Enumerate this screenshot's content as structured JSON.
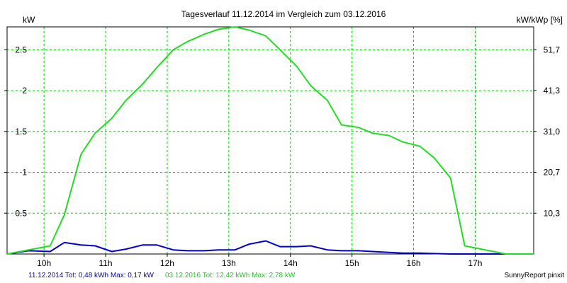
{
  "colors": {
    "background": "#ffffff",
    "plot_background": "#ffffff",
    "grid": "#00cc00",
    "series_2014": "#0000cc",
    "series_2016": "#22dd22",
    "footer_2014": "#0000cc",
    "footer_2016": "#22cc22"
  },
  "footer": {
    "series_2014_text": "11.12.2014 Tot: 0,48 kWh Max: 0,17 kW",
    "series_2016_text": "03.12.2016 Tot: 12,42 kWh Max: 2,78 kW",
    "credit": "SunnyReport pinxit"
  },
  "chart_data": {
    "type": "line",
    "title": "Tagesverlauf 11.12.2014 im Vergleich zum 03.12.2016",
    "ylabel_left": "kW",
    "ylabel_right": "kW/kWp [%]",
    "xlim": [
      9.4,
      17.95
    ],
    "ylim": [
      0,
      2.78
    ],
    "x_ticks": [
      {
        "value": 10,
        "label": "10h"
      },
      {
        "value": 11,
        "label": "11h"
      },
      {
        "value": 12,
        "label": "12h"
      },
      {
        "value": 13,
        "label": "13h"
      },
      {
        "value": 14,
        "label": "14h"
      },
      {
        "value": 15,
        "label": "15h"
      },
      {
        "value": 16,
        "label": "16h"
      },
      {
        "value": 17,
        "label": "17h"
      }
    ],
    "y_ticks_left": [
      {
        "value": 0.5,
        "label": "0.5"
      },
      {
        "value": 1,
        "label": "1"
      },
      {
        "value": 1.5,
        "label": "1.5"
      },
      {
        "value": 2,
        "label": "2"
      },
      {
        "value": 2.5,
        "label": "2.5"
      }
    ],
    "y_ticks_right": [
      {
        "value": 0.5,
        "label": "10,3"
      },
      {
        "value": 1,
        "label": "20,7"
      },
      {
        "value": 1.5,
        "label": "31,0"
      },
      {
        "value": 2,
        "label": "41,3"
      },
      {
        "value": 2.5,
        "label": "51,7"
      }
    ],
    "grid": true,
    "series": [
      {
        "key": "s2014",
        "color": "#0000cc",
        "x": [
          9.4,
          9.75,
          10.1,
          10.33,
          10.6,
          10.83,
          11.1,
          11.33,
          11.6,
          11.83,
          12.1,
          12.33,
          12.6,
          12.83,
          13.1,
          13.33,
          13.6,
          13.83,
          14.1,
          14.33,
          14.6,
          14.83,
          15.1,
          15.33,
          15.6,
          15.83,
          16.1,
          16.33,
          16.6,
          16.83,
          17.1,
          17.5,
          17.95
        ],
        "y": [
          0.0,
          0.04,
          0.03,
          0.14,
          0.11,
          0.1,
          0.03,
          0.06,
          0.11,
          0.11,
          0.05,
          0.04,
          0.04,
          0.05,
          0.05,
          0.12,
          0.16,
          0.09,
          0.09,
          0.1,
          0.05,
          0.04,
          0.04,
          0.03,
          0.02,
          0.01,
          0.01,
          0.005,
          0.0,
          0.0,
          0.0,
          0.0,
          0.0
        ]
      },
      {
        "key": "s2016",
        "color": "#22dd22",
        "x": [
          9.4,
          10.1,
          10.33,
          10.6,
          10.83,
          11.1,
          11.33,
          11.6,
          11.83,
          12.1,
          12.33,
          12.6,
          12.83,
          13.1,
          13.33,
          13.6,
          13.83,
          14.1,
          14.33,
          14.6,
          14.83,
          15.1,
          15.33,
          15.6,
          15.83,
          16.1,
          16.33,
          16.6,
          16.83,
          17.1,
          17.5,
          17.95
        ],
        "y": [
          0.0,
          0.1,
          0.48,
          1.22,
          1.48,
          1.66,
          1.88,
          2.08,
          2.28,
          2.5,
          2.6,
          2.69,
          2.75,
          2.78,
          2.74,
          2.67,
          2.5,
          2.3,
          2.06,
          1.88,
          1.58,
          1.55,
          1.48,
          1.45,
          1.37,
          1.32,
          1.18,
          0.93,
          0.1,
          0.06,
          0.0,
          0.0
        ]
      }
    ]
  }
}
